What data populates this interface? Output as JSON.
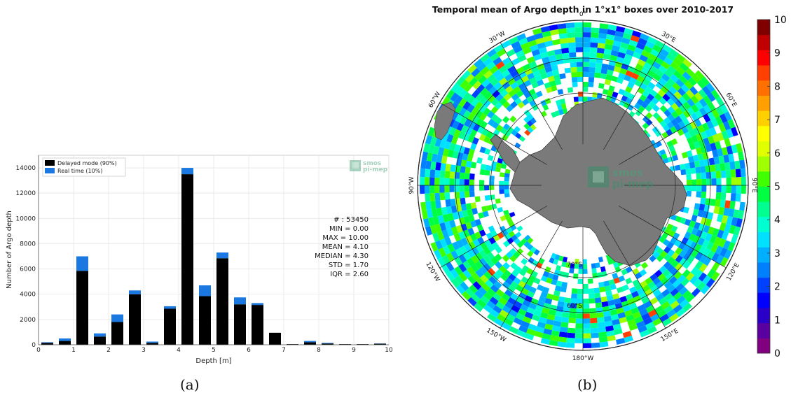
{
  "captions": {
    "a": "(a)",
    "b": "(b)"
  },
  "stats": [
    {
      "label": "# : 53450"
    },
    {
      "label": "MIN = 0.00"
    },
    {
      "label": "MAX =  10.00"
    },
    {
      "label": "MEAN = 4.10"
    },
    {
      "label": "MEDIAN = 4.30"
    },
    {
      "label": "STD = 1.70"
    },
    {
      "label": "IQR = 2.60"
    }
  ],
  "logo": {
    "line1": "smos",
    "line2": "pi-mep"
  },
  "colors": {
    "delayed": "#000000",
    "realtime": "#1a78e0",
    "land": "#7a7a7a"
  },
  "chart_data": [
    {
      "type": "bar",
      "stacked": true,
      "xlabel": "Depth [m]",
      "ylabel": "Number of Argo depth",
      "xlim": [
        0,
        10
      ],
      "ylim": [
        0,
        15000
      ],
      "xticks": [
        0,
        1,
        2,
        3,
        4,
        5,
        6,
        7,
        8,
        9,
        10
      ],
      "yticks": [
        0,
        2000,
        4000,
        6000,
        8000,
        10000,
        12000,
        14000
      ],
      "grid": true,
      "legend_position": "top-left",
      "x": [
        0.25,
        0.75,
        1.25,
        1.75,
        2.25,
        2.75,
        3.25,
        3.75,
        4.25,
        4.75,
        5.25,
        5.75,
        6.25,
        6.75,
        7.25,
        7.75,
        8.25,
        8.75,
        9.25,
        9.75
      ],
      "series": [
        {
          "name": "Delayed mode (90%)",
          "color": "#000000",
          "values": [
            150,
            300,
            5850,
            650,
            1800,
            4000,
            150,
            2850,
            13500,
            3850,
            6850,
            3200,
            3150,
            950,
            50,
            200,
            100,
            50,
            50,
            80
          ]
        },
        {
          "name": "Real time (10%)",
          "color": "#1a78e0",
          "values": [
            50,
            200,
            1150,
            250,
            600,
            300,
            100,
            200,
            500,
            850,
            450,
            550,
            150,
            0,
            0,
            100,
            50,
            0,
            0,
            20
          ]
        }
      ]
    },
    {
      "type": "heatmap",
      "projection": "south-polar-stereographic",
      "title": "Temporal mean of Argo depth in 1°x1° boxes over 2010-2017",
      "lon_labels": [
        {
          "text": "0°",
          "lon": 0
        },
        {
          "text": "30°E",
          "lon": 30
        },
        {
          "text": "60°E",
          "lon": 60
        },
        {
          "text": "90°E",
          "lon": 90
        },
        {
          "text": "120°E",
          "lon": 120
        },
        {
          "text": "150°E",
          "lon": 150
        },
        {
          "text": "180°W",
          "lon": 180
        },
        {
          "text": "150°W",
          "lon": -150
        },
        {
          "text": "120°W",
          "lon": -120
        },
        {
          "text": "90°W",
          "lon": -90
        },
        {
          "text": "60°W",
          "lon": -60
        },
        {
          "text": "30°W",
          "lon": -30
        }
      ],
      "lat_labels": [
        {
          "text": "60°S",
          "lat": -60
        },
        {
          "text": "70°S",
          "lat": -70
        }
      ],
      "colorbar": {
        "min": 0,
        "max": 10,
        "ticks": [
          0,
          1,
          2,
          3,
          4,
          5,
          6,
          7,
          8,
          9,
          10
        ],
        "colors": [
          "#800080",
          "#5a00a0",
          "#2a00c8",
          "#0000ff",
          "#0040ff",
          "#0080ff",
          "#00b0ff",
          "#00e0ff",
          "#00ffd0",
          "#00ff90",
          "#00ff40",
          "#40ff00",
          "#a0ff00",
          "#e0ff00",
          "#ffff00",
          "#ffd000",
          "#ffa000",
          "#ff7000",
          "#ff4000",
          "#ff0000",
          "#c00000",
          "#800000"
        ]
      }
    }
  ]
}
